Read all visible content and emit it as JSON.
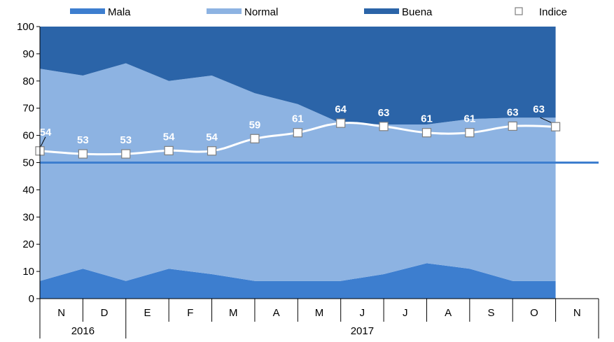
{
  "chart_data": {
    "type": "area",
    "categories": [
      "N",
      "D",
      "E",
      "F",
      "M",
      "A",
      "M",
      "J",
      "J",
      "A",
      "S",
      "O",
      "N"
    ],
    "year_groups": [
      {
        "label": "2016",
        "count": 2
      },
      {
        "label": "2017",
        "count": 11
      }
    ],
    "ylim": [
      0,
      100
    ],
    "yticks": [
      "0",
      "10",
      "20",
      "30",
      "40",
      "50",
      "60",
      "70",
      "80",
      "90",
      "100"
    ],
    "reference_line": 50,
    "series": [
      {
        "name": "Mala",
        "color": "#3d7ecf",
        "values": [
          6.5,
          11,
          6.5,
          11,
          9,
          6.5,
          6.5,
          6.5,
          9,
          13,
          11,
          6.5,
          6.5
        ]
      },
      {
        "name": "Normal",
        "color": "#8db3e2",
        "values": [
          78,
          71,
          80,
          69,
          73,
          69,
          65,
          58,
          55,
          51,
          55,
          60,
          60
        ]
      },
      {
        "name": "Buena",
        "color": "#2b64a8",
        "values": [
          15.5,
          18,
          13.5,
          20,
          18,
          24.5,
          28.5,
          35.5,
          36,
          36,
          34,
          33.5,
          33.5
        ]
      }
    ],
    "index_series": {
      "name": "Indice",
      "values": [
        54.3,
        53.2,
        53.2,
        54.4,
        54.3,
        58.8,
        61,
        64.5,
        63.3,
        61,
        61,
        63.4,
        63.2
      ],
      "labels": [
        "54",
        "53",
        "53",
        "54",
        "54",
        "59",
        "61",
        "64",
        "63",
        "61",
        "61",
        "63",
        "63"
      ]
    },
    "legend_position": "top"
  }
}
